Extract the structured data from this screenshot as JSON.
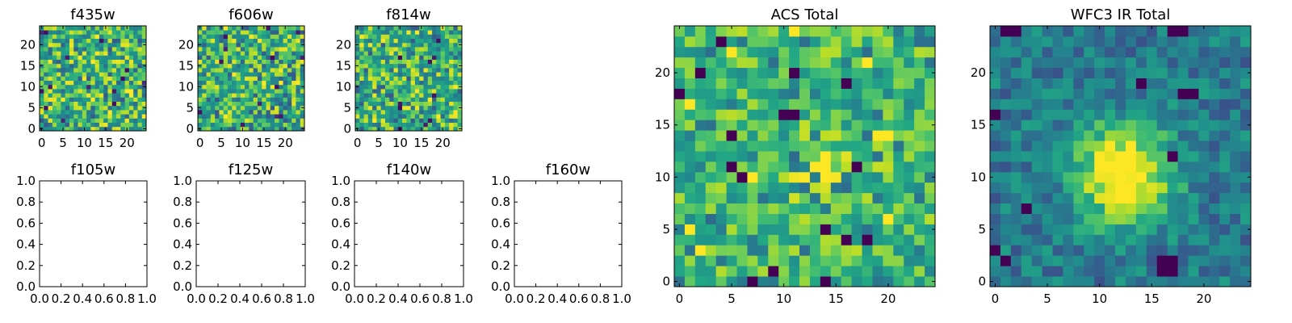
{
  "figure": {
    "background": "#ffffff",
    "colormap": "viridis"
  },
  "chart_data": [
    {
      "type": "heatmap",
      "title": "f435w",
      "grid": false,
      "xlim": [
        -0.5,
        24.5
      ],
      "ylim": [
        -0.5,
        24.5
      ],
      "xticks": [
        0,
        5,
        10,
        15,
        20
      ],
      "yticks": [
        0,
        5,
        10,
        15,
        20
      ],
      "xtick_labels": [
        "0",
        "5",
        "10",
        "15",
        "20"
      ],
      "ytick_labels": [
        "0",
        "5",
        "10",
        "15",
        "20"
      ],
      "pattern": "noise",
      "seed": 11,
      "level_range": [
        0.45,
        1.0
      ],
      "dark_pixels": 14
    },
    {
      "type": "heatmap",
      "title": "f606w",
      "grid": false,
      "xlim": [
        -0.5,
        24.5
      ],
      "ylim": [
        -0.5,
        24.5
      ],
      "xticks": [
        0,
        5,
        10,
        15,
        20
      ],
      "yticks": [
        0,
        5,
        10,
        15,
        20
      ],
      "xtick_labels": [
        "0",
        "5",
        "10",
        "15",
        "20"
      ],
      "ytick_labels": [
        "0",
        "5",
        "10",
        "15",
        "20"
      ],
      "pattern": "noise",
      "seed": 23,
      "level_range": [
        0.45,
        1.0
      ],
      "dark_pixels": 14
    },
    {
      "type": "heatmap",
      "title": "f814w",
      "grid": false,
      "xlim": [
        -0.5,
        24.5
      ],
      "ylim": [
        -0.5,
        24.5
      ],
      "xticks": [
        0,
        5,
        10,
        15,
        20
      ],
      "yticks": [
        0,
        5,
        10,
        15,
        20
      ],
      "xtick_labels": [
        "0",
        "5",
        "10",
        "15",
        "20"
      ],
      "ytick_labels": [
        "0",
        "5",
        "10",
        "15",
        "20"
      ],
      "pattern": "noise",
      "seed": 37,
      "level_range": [
        0.45,
        1.0
      ],
      "dark_pixels": 10
    },
    {
      "type": "empty",
      "title": "f105w",
      "xlim": [
        0,
        1
      ],
      "ylim": [
        0,
        1
      ],
      "xticks": [
        0,
        0.2,
        0.4,
        0.6,
        0.8,
        1.0
      ],
      "yticks": [
        0,
        0.2,
        0.4,
        0.6,
        0.8,
        1.0
      ],
      "xtick_labels": [
        "0.0",
        "0.2",
        "0.4",
        "0.6",
        "0.8",
        "1.0"
      ],
      "ytick_labels": [
        "0.0",
        "0.2",
        "0.4",
        "0.6",
        "0.8",
        "1.0"
      ]
    },
    {
      "type": "empty",
      "title": "f125w",
      "xlim": [
        0,
        1
      ],
      "ylim": [
        0,
        1
      ],
      "xticks": [
        0,
        0.2,
        0.4,
        0.6,
        0.8,
        1.0
      ],
      "yticks": [
        0,
        0.2,
        0.4,
        0.6,
        0.8,
        1.0
      ],
      "xtick_labels": [
        "0.0",
        "0.2",
        "0.4",
        "0.6",
        "0.8",
        "1.0"
      ],
      "ytick_labels": [
        "0.0",
        "0.2",
        "0.4",
        "0.6",
        "0.8",
        "1.0"
      ]
    },
    {
      "type": "empty",
      "title": "f140w",
      "xlim": [
        0,
        1
      ],
      "ylim": [
        0,
        1
      ],
      "xticks": [
        0,
        0.2,
        0.4,
        0.6,
        0.8,
        1.0
      ],
      "yticks": [
        0,
        0.2,
        0.4,
        0.6,
        0.8,
        1.0
      ],
      "xtick_labels": [
        "0.0",
        "0.2",
        "0.4",
        "0.6",
        "0.8",
        "1.0"
      ],
      "ytick_labels": [
        "0.0",
        "0.2",
        "0.4",
        "0.6",
        "0.8",
        "1.0"
      ]
    },
    {
      "type": "empty",
      "title": "f160w",
      "xlim": [
        0,
        1
      ],
      "ylim": [
        0,
        1
      ],
      "xticks": [
        0,
        0.2,
        0.4,
        0.6,
        0.8,
        1.0
      ],
      "yticks": [
        0,
        0.2,
        0.4,
        0.6,
        0.8,
        1.0
      ],
      "xtick_labels": [
        "0.0",
        "0.2",
        "0.4",
        "0.6",
        "0.8",
        "1.0"
      ],
      "ytick_labels": [
        "0.0",
        "0.2",
        "0.4",
        "0.6",
        "0.8",
        "1.0"
      ]
    },
    {
      "type": "heatmap",
      "title": "ACS Total",
      "grid": false,
      "xlim": [
        -0.5,
        24.5
      ],
      "ylim": [
        -0.5,
        24.5
      ],
      "xticks": [
        0,
        5,
        10,
        15,
        20
      ],
      "yticks": [
        0,
        5,
        10,
        15,
        20
      ],
      "xtick_labels": [
        "0",
        "5",
        "10",
        "15",
        "20"
      ],
      "ytick_labels": [
        "0",
        "5",
        "10",
        "15",
        "20"
      ],
      "pattern": "faint_source",
      "seed": 53,
      "center": [
        13.5,
        10.5
      ],
      "source_width": 3.0,
      "level_range": [
        0.5,
        0.9
      ],
      "dark_pixels_xy": [
        [
          4,
          23
        ],
        [
          2,
          20
        ],
        [
          0,
          18
        ],
        [
          11,
          20
        ],
        [
          16,
          19
        ],
        [
          5,
          14
        ],
        [
          10,
          16
        ],
        [
          11,
          16
        ],
        [
          5,
          11
        ],
        [
          6,
          10
        ],
        [
          17,
          11
        ],
        [
          14,
          5
        ],
        [
          16,
          4
        ],
        [
          18,
          4
        ],
        [
          9,
          1
        ],
        [
          7,
          0
        ],
        [
          14,
          0
        ]
      ],
      "bright_pixels_xy": [
        [
          5,
          22
        ],
        [
          11,
          24
        ],
        [
          18,
          21
        ],
        [
          1,
          17
        ],
        [
          19,
          14
        ],
        [
          20,
          14
        ],
        [
          13,
          11
        ],
        [
          14,
          11
        ],
        [
          14,
          10
        ],
        [
          7,
          10
        ],
        [
          1,
          5
        ],
        [
          2,
          3
        ],
        [
          20,
          6
        ]
      ]
    },
    {
      "type": "heatmap",
      "title": "WFC3 IR Total",
      "grid": false,
      "xlim": [
        -0.5,
        24.5
      ],
      "ylim": [
        -0.5,
        24.5
      ],
      "xticks": [
        0,
        5,
        10,
        15,
        20
      ],
      "yticks": [
        0,
        5,
        10,
        15,
        20
      ],
      "xtick_labels": [
        "0",
        "5",
        "10",
        "15",
        "20"
      ],
      "ytick_labels": [
        "0",
        "5",
        "10",
        "15",
        "20"
      ],
      "pattern": "bright_source",
      "seed": 71,
      "center": [
        12.3,
        10.3
      ],
      "source_width": 3.2,
      "level_range": [
        0.25,
        0.68
      ],
      "peak": 0.96,
      "dark_pixels_xy": [
        [
          1,
          24
        ],
        [
          2,
          24
        ],
        [
          17,
          24
        ],
        [
          18,
          24
        ],
        [
          14,
          19
        ],
        [
          0,
          16
        ],
        [
          18,
          18
        ],
        [
          19,
          18
        ],
        [
          17,
          12
        ],
        [
          3,
          7
        ],
        [
          0,
          3
        ],
        [
          1,
          2
        ],
        [
          16,
          2
        ],
        [
          17,
          2
        ],
        [
          16,
          1
        ],
        [
          17,
          1
        ]
      ]
    }
  ]
}
